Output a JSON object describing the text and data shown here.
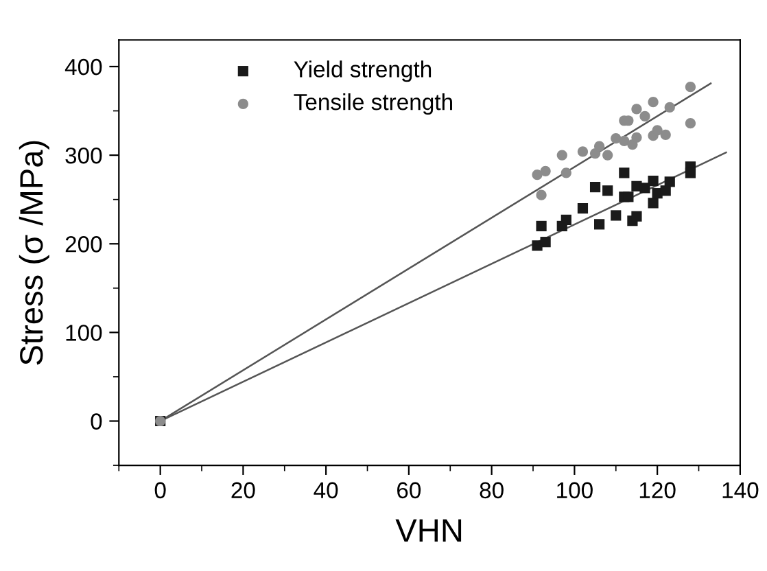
{
  "chart_data": {
    "type": "scatter",
    "xlabel": "VHN",
    "ylabel": "Stress (σ /MPa)",
    "xlim": [
      -10,
      140
    ],
    "ylim": [
      -50,
      430
    ],
    "xticks": [
      0,
      20,
      40,
      60,
      80,
      100,
      120,
      140
    ],
    "yticks": [
      0,
      100,
      200,
      300,
      400
    ],
    "grid": false,
    "legend": "top left",
    "series": [
      {
        "name": "Yield strength",
        "marker": "square",
        "color": "#1a1a1a",
        "x": [
          0,
          91,
          92,
          93,
          97,
          98,
          102,
          105,
          106,
          108,
          110,
          112,
          112,
          113,
          114,
          115,
          115,
          117,
          119,
          119,
          120,
          122,
          123,
          128,
          128
        ],
        "values": [
          0,
          198,
          220,
          202,
          220,
          227,
          240,
          264,
          222,
          260,
          232,
          280,
          253,
          253,
          226,
          231,
          265,
          263,
          271,
          246,
          257,
          260,
          270,
          287,
          280
        ]
      },
      {
        "name": "Tensile strength",
        "marker": "circle",
        "color": "#8c8c8c",
        "x": [
          0,
          91,
          92,
          93,
          97,
          98,
          102,
          105,
          106,
          108,
          110,
          112,
          112,
          113,
          114,
          115,
          115,
          117,
          119,
          119,
          120,
          122,
          123,
          128,
          128
        ],
        "values": [
          0,
          278,
          255,
          282,
          300,
          280,
          304,
          302,
          310,
          300,
          319,
          316,
          339,
          339,
          312,
          320,
          352,
          344,
          360,
          322,
          328,
          323,
          354,
          377,
          336
        ]
      },
      {
        "type": "line",
        "color": "#555555",
        "x": [
          0,
          132.9
        ],
        "values": [
          0,
          381
        ]
      },
      {
        "type": "line",
        "color": "#555555",
        "x": [
          0,
          136.6
        ],
        "values": [
          0,
          303
        ]
      }
    ]
  }
}
